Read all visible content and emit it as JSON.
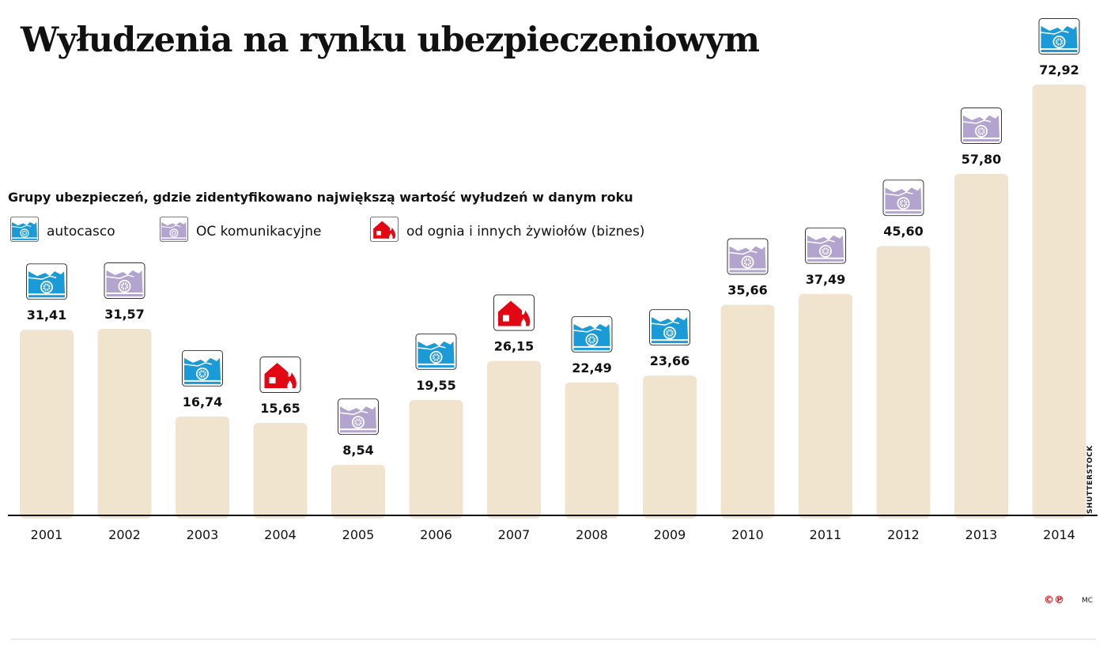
{
  "title": "Wyłudzenia na rynku ubezpieczeniowym",
  "subtitle": "Grupy ubezpieczeń, gdzie zidentyfikowano największą wartość wyłudzeń w danym roku",
  "legend": [
    {
      "key": "autocasco",
      "label": "autocasco",
      "icon": "car-icon",
      "color": "#1a9ad6"
    },
    {
      "key": "oc",
      "label": "OC komunikacyjne",
      "icon": "car-icon",
      "color": "#b3a3cf"
    },
    {
      "key": "fire",
      "label": "od ognia i innych żywiołów (biznes)",
      "icon": "burning-house-icon",
      "color": "#e30613"
    }
  ],
  "source": "SHUTTERSTOCK",
  "logo": "©℗",
  "author": "MC",
  "chart_data": {
    "type": "bar",
    "title": "Wyłudzenia na rynku ubezpieczeniowym",
    "categories": [
      "2001",
      "2002",
      "2003",
      "2004",
      "2005",
      "2006",
      "2007",
      "2008",
      "2009",
      "2010",
      "2011",
      "2012",
      "2013",
      "2014"
    ],
    "values": [
      31.41,
      31.57,
      16.74,
      15.65,
      8.54,
      19.55,
      26.15,
      22.49,
      23.66,
      35.66,
      37.49,
      45.6,
      57.8,
      72.92
    ],
    "value_labels": [
      "31,41",
      "31,57",
      "16,74",
      "15,65",
      "8,54",
      "19,55",
      "26,15",
      "22,49",
      "23,66",
      "35,66",
      "37,49",
      "45,60",
      "57,80",
      "72,92"
    ],
    "groups": [
      "autocasco",
      "oc",
      "autocasco",
      "fire",
      "oc",
      "autocasco",
      "fire",
      "autocasco",
      "autocasco",
      "oc",
      "oc",
      "oc",
      "oc",
      "autocasco"
    ],
    "ylim": [
      0,
      75
    ],
    "grid": false,
    "bar_color": "#f1e4cf",
    "legend_position": "top-left"
  }
}
